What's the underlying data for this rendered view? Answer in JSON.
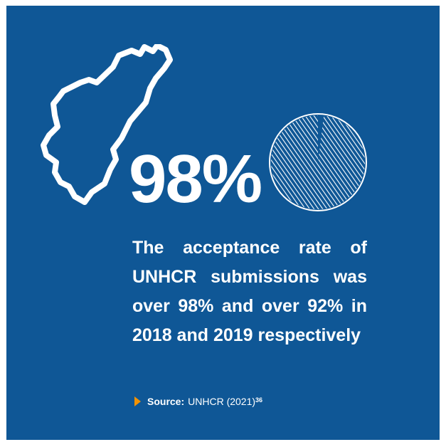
{
  "stat": {
    "value": "98%",
    "caption": "The acceptance rate of UNHCR submissions was over 98% and over 92% in 2018 and 2019 respectively",
    "pie_fraction": 0.98
  },
  "source": {
    "label": "Source:",
    "text": "UNHCR (2021)",
    "footnote": "36"
  },
  "colors": {
    "panel_background": "#0f5796",
    "accent": "#f39200",
    "foreground": "#ffffff"
  },
  "icons": {
    "map": "country-outline-icon",
    "pie": "pie-chart-icon",
    "bullet": "triangle-arrow-icon"
  }
}
